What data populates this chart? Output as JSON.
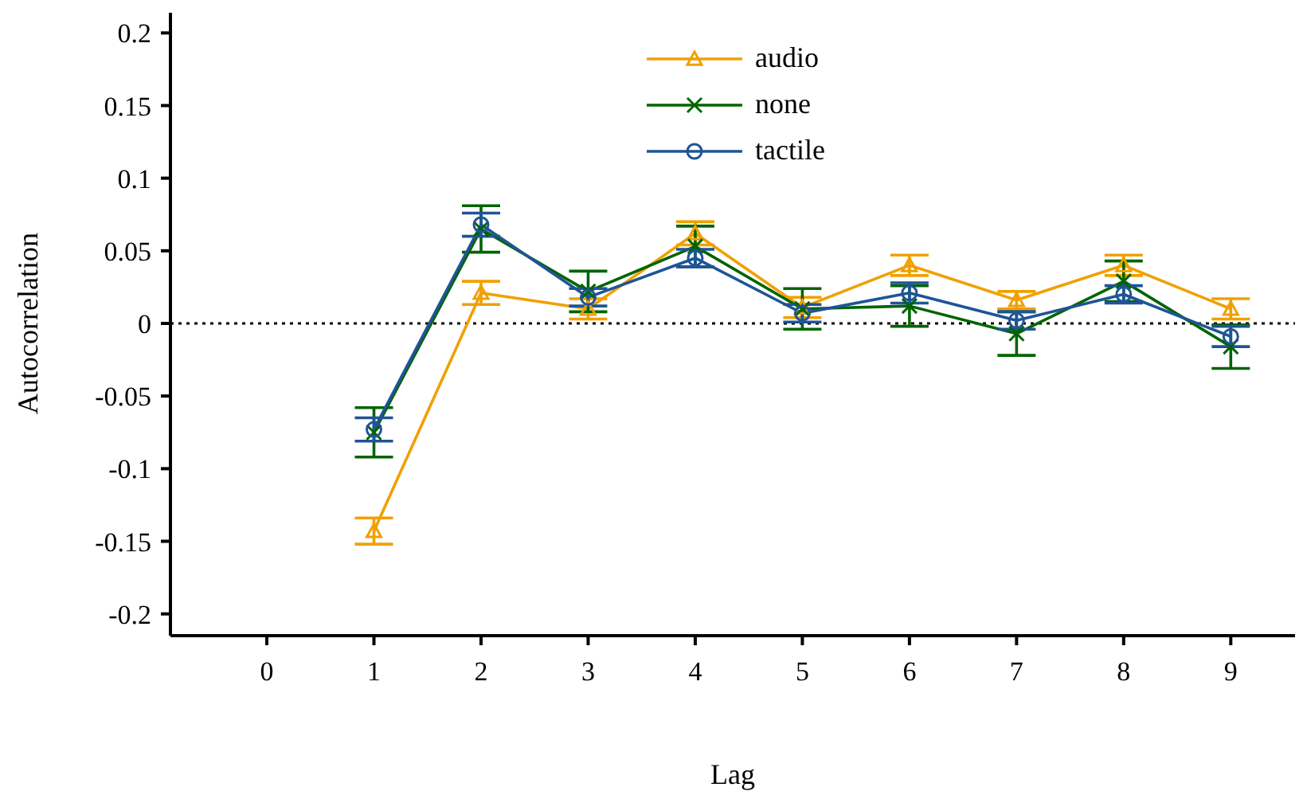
{
  "chart_data": {
    "type": "line",
    "xlabel": "Lag",
    "ylabel": "Autocorrelation",
    "x": [
      1,
      2,
      3,
      4,
      5,
      6,
      7,
      8,
      9
    ],
    "series": [
      {
        "name": "audio",
        "color": "#f0a000",
        "marker": "triangle",
        "values": [
          -0.143,
          0.021,
          0.01,
          0.062,
          0.011,
          0.04,
          0.016,
          0.04,
          0.01
        ],
        "errors": [
          0.009,
          0.008,
          0.007,
          0.008,
          0.007,
          0.007,
          0.006,
          0.007,
          0.007
        ]
      },
      {
        "name": "none",
        "color": "#006400",
        "marker": "cross",
        "values": [
          -0.075,
          0.065,
          0.022,
          0.053,
          0.01,
          0.012,
          -0.007,
          0.029,
          -0.016
        ],
        "errors": [
          0.017,
          0.016,
          0.014,
          0.014,
          0.014,
          0.014,
          0.015,
          0.014,
          0.015
        ]
      },
      {
        "name": "tactile",
        "color": "#1f5496",
        "marker": "circle",
        "values": [
          -0.073,
          0.068,
          0.018,
          0.045,
          0.007,
          0.021,
          0.002,
          0.02,
          -0.009
        ],
        "errors": [
          0.008,
          0.008,
          0.006,
          0.006,
          0.006,
          0.007,
          0.006,
          0.006,
          0.007
        ]
      }
    ],
    "xlim": [
      -0.9,
      9.6
    ],
    "xticks": [
      0,
      1,
      2,
      3,
      4,
      5,
      6,
      7,
      8,
      9
    ],
    "ylim": [
      -0.215,
      0.215
    ],
    "yticks": [
      -0.2,
      -0.15,
      -0.1,
      -0.05,
      0,
      0.05,
      0.1,
      0.15,
      0.2
    ],
    "ref_lines": [
      {
        "axis": "y",
        "value": 0,
        "color": "#000000",
        "line_style": "dotted"
      }
    ],
    "grid": false,
    "legend": "top",
    "line_style": "solid"
  }
}
